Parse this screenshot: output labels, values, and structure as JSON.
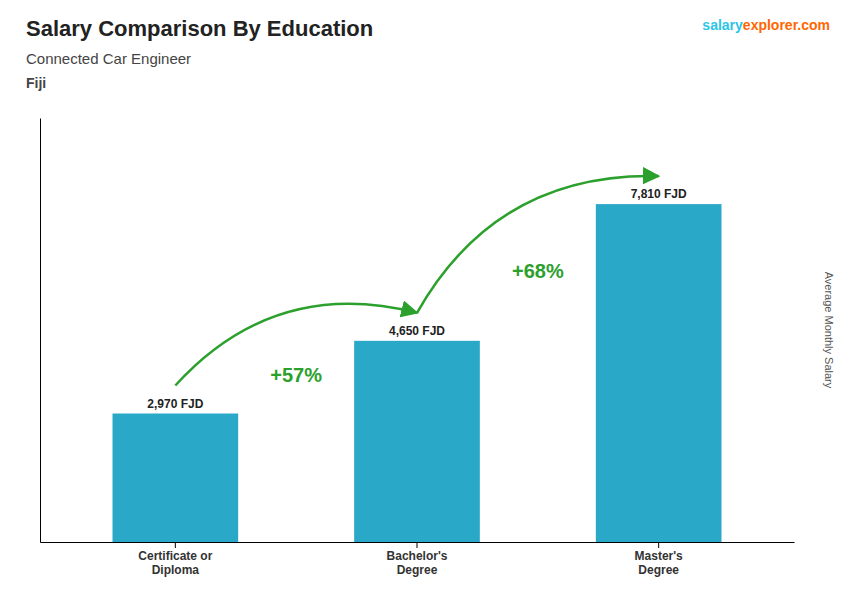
{
  "chart_data": {
    "type": "bar",
    "title": "Salary Comparison By Education",
    "subtitle": "Connected Car Engineer",
    "country": "Fiji",
    "brand": [
      {
        "text": "salary",
        "color": "#29c5e6"
      },
      {
        "text": "explorer.com",
        "color": "#ff6600"
      }
    ],
    "ylabel": "Average Monthly Salary",
    "categories": [
      "Certificate or\nDiploma",
      "Bachelor's\nDegree",
      "Master's\nDegree"
    ],
    "values": [
      2970,
      4650,
      7810
    ],
    "value_labels": [
      "2,970 FJD",
      "4,650 FJD",
      "7,810 FJD"
    ],
    "data_labels": true,
    "annotations": [
      {
        "text": "+57%"
      },
      {
        "text": "+68%"
      }
    ],
    "color": "#29a8c8",
    "ylim": [
      0,
      9800
    ],
    "grid": false,
    "tick_labels": "x"
  }
}
